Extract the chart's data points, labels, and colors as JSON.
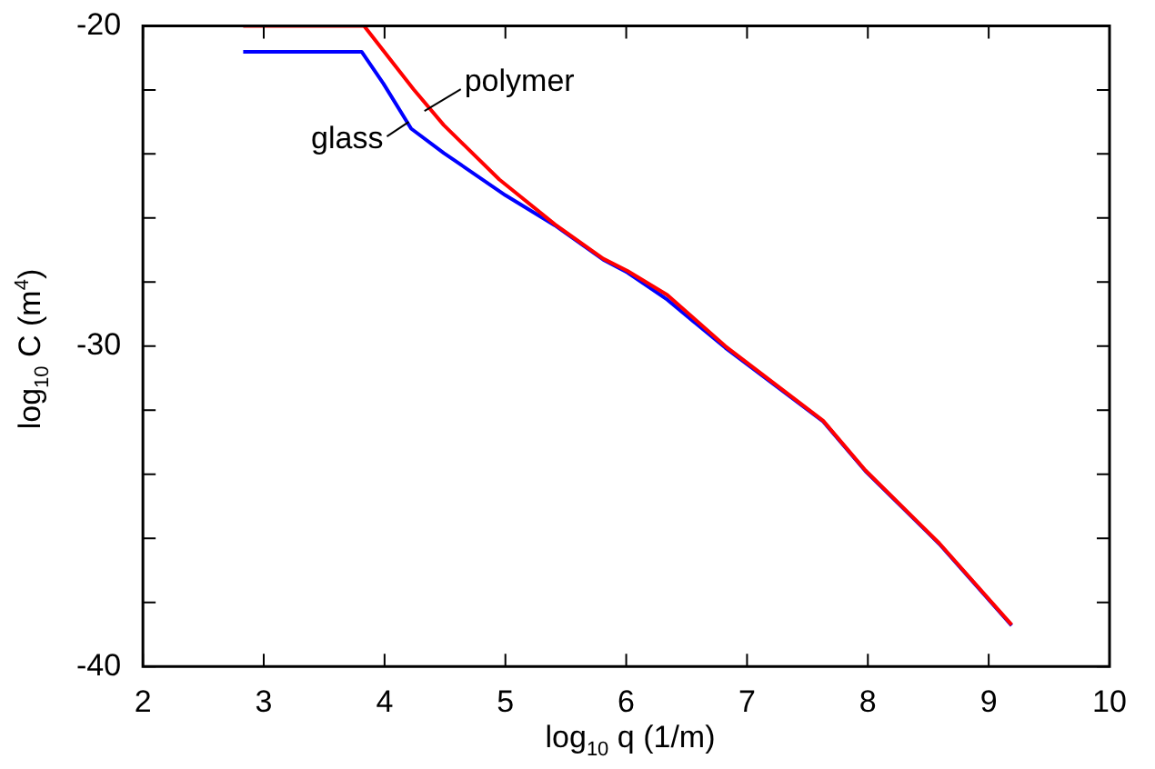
{
  "chart_data": {
    "type": "line",
    "xlabel": "log$_{10}$ q (1/m)",
    "ylabel": "log$_{10}$ C (m$^{4}$)",
    "xlim": [
      2,
      10
    ],
    "xticks": [
      2,
      3,
      4,
      5,
      6,
      7,
      8,
      9,
      10
    ],
    "ylim": [
      -40,
      -20
    ],
    "yticks": [
      -40,
      {
        "value": -38,
        "label": null
      },
      {
        "value": -36,
        "label": null
      },
      {
        "value": -34,
        "label": null
      },
      {
        "value": -32,
        "label": null
      },
      -30,
      {
        "value": -28,
        "label": null
      },
      {
        "value": -26,
        "label": null
      },
      {
        "value": -24,
        "label": null
      },
      {
        "value": -22,
        "label": null
      },
      -20
    ],
    "grid": false,
    "legend": false,
    "marker": "none",
    "line_style": "solid",
    "series": [
      {
        "color": "#ff0000",
        "x": [
          2.83,
          3.83,
          4.24,
          4.49,
          4.95,
          5.41,
          5.81,
          6.01,
          6.34,
          6.82,
          7.63,
          7.98,
          8.59,
          9.19
        ],
        "values": [
          -20,
          -20,
          -21.98,
          -23.1,
          -24.8,
          -26.2,
          -27.27,
          -27.65,
          -28.4,
          -30.0,
          -32.33,
          -33.88,
          -36.15,
          -38.7
        ]
      },
      {
        "color": "#0000ff",
        "x": [
          2.83,
          3.81,
          3.99,
          4.22,
          4.49,
          5.0,
          5.41,
          5.81,
          6.01,
          6.34,
          6.82,
          7.63,
          7.98,
          8.59,
          9.19
        ],
        "values": [
          -20.81,
          -20.81,
          -21.8,
          -23.21,
          -23.97,
          -25.29,
          -26.23,
          -27.3,
          -27.7,
          -28.55,
          -30.05,
          -32.35,
          -33.9,
          -36.17,
          -38.72
        ]
      }
    ],
    "annotations": [
      {
        "text": "polymer",
        "x": 4.33,
        "y": -22.66
      },
      {
        "text": "glass",
        "x": 4.2,
        "y": -23.0
      }
    ]
  }
}
